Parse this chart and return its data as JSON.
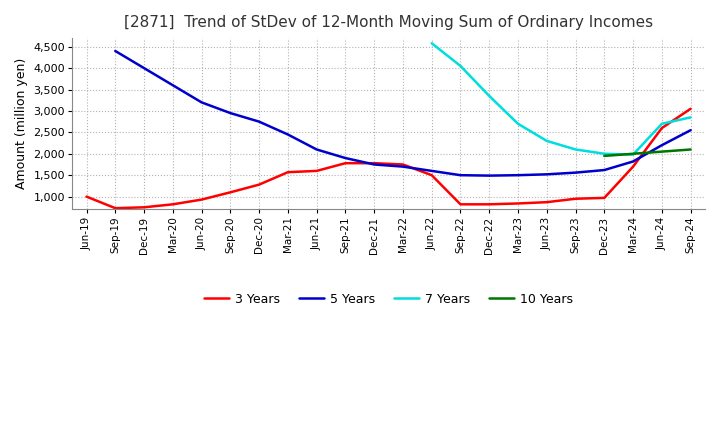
{
  "title": "[2871]  Trend of StDev of 12-Month Moving Sum of Ordinary Incomes",
  "ylabel": "Amount (million yen)",
  "ylim": [
    700,
    4700
  ],
  "yticks": [
    1000,
    1500,
    2000,
    2500,
    3000,
    3500,
    4000,
    4500
  ],
  "x_labels": [
    "Jun-19",
    "Sep-19",
    "Dec-19",
    "Mar-20",
    "Jun-20",
    "Sep-20",
    "Dec-20",
    "Mar-21",
    "Jun-21",
    "Sep-21",
    "Dec-21",
    "Mar-22",
    "Jun-22",
    "Sep-22",
    "Dec-22",
    "Mar-23",
    "Jun-23",
    "Sep-23",
    "Dec-23",
    "Mar-24",
    "Jun-24",
    "Sep-24"
  ],
  "colors": {
    "3yr": "#ff0000",
    "5yr": "#0000cc",
    "7yr": "#00dddd",
    "10yr": "#007700"
  },
  "series_3yr": [
    1000,
    730,
    750,
    820,
    930,
    1100,
    1280,
    1570,
    1600,
    1780,
    1780,
    1750,
    1500,
    820,
    820,
    840,
    870,
    950,
    970,
    1700,
    2600,
    3050
  ],
  "series_5yr": [
    null,
    4400,
    4000,
    3600,
    3200,
    2950,
    2750,
    2450,
    2100,
    1900,
    1750,
    1700,
    1600,
    1500,
    1490,
    1500,
    1520,
    1560,
    1620,
    1820,
    2200,
    2550
  ],
  "series_7yr": [
    null,
    null,
    null,
    null,
    null,
    null,
    null,
    null,
    null,
    null,
    null,
    null,
    4580,
    4050,
    3350,
    2700,
    2300,
    2100,
    2000,
    1980,
    2700,
    2850
  ],
  "series_10yr": [
    null,
    null,
    null,
    null,
    null,
    null,
    null,
    null,
    null,
    null,
    null,
    null,
    null,
    null,
    null,
    null,
    null,
    null,
    1950,
    2000,
    2050,
    2100
  ],
  "legend_labels": [
    "3 Years",
    "5 Years",
    "7 Years",
    "10 Years"
  ],
  "background_color": "#ffffff",
  "grid_color": "#aaaaaa"
}
